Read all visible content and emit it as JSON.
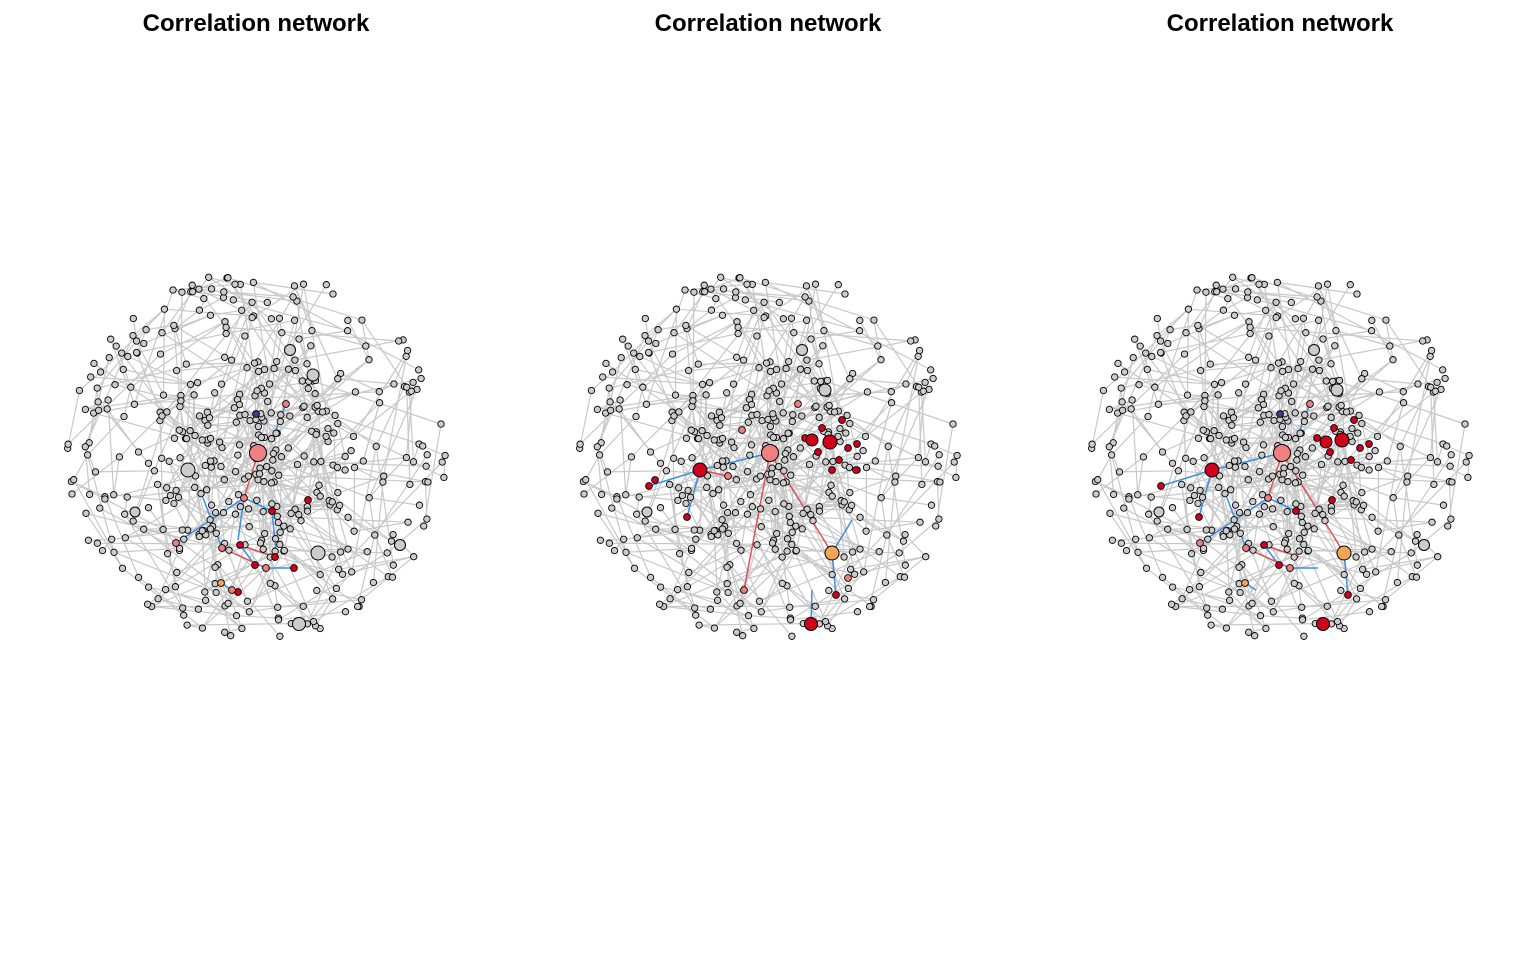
{
  "panels": [
    {
      "title": "Correlation network",
      "seed": 11,
      "variant": 0
    },
    {
      "title": "Correlation network",
      "seed": 11,
      "variant": 1
    },
    {
      "title": "Correlation network",
      "seed": 11,
      "variant": 2
    }
  ],
  "colors": {
    "node_default": "#cccccc",
    "node_pink": "#f08080",
    "node_red": "#d0021b",
    "node_orange": "#f5a55a",
    "node_purple": "#5b2c8a",
    "edge_default": "#c8c8c8",
    "edge_positive": "#e0505a",
    "edge_negative": "#3a8ee6",
    "node_stroke": "#000000"
  }
}
